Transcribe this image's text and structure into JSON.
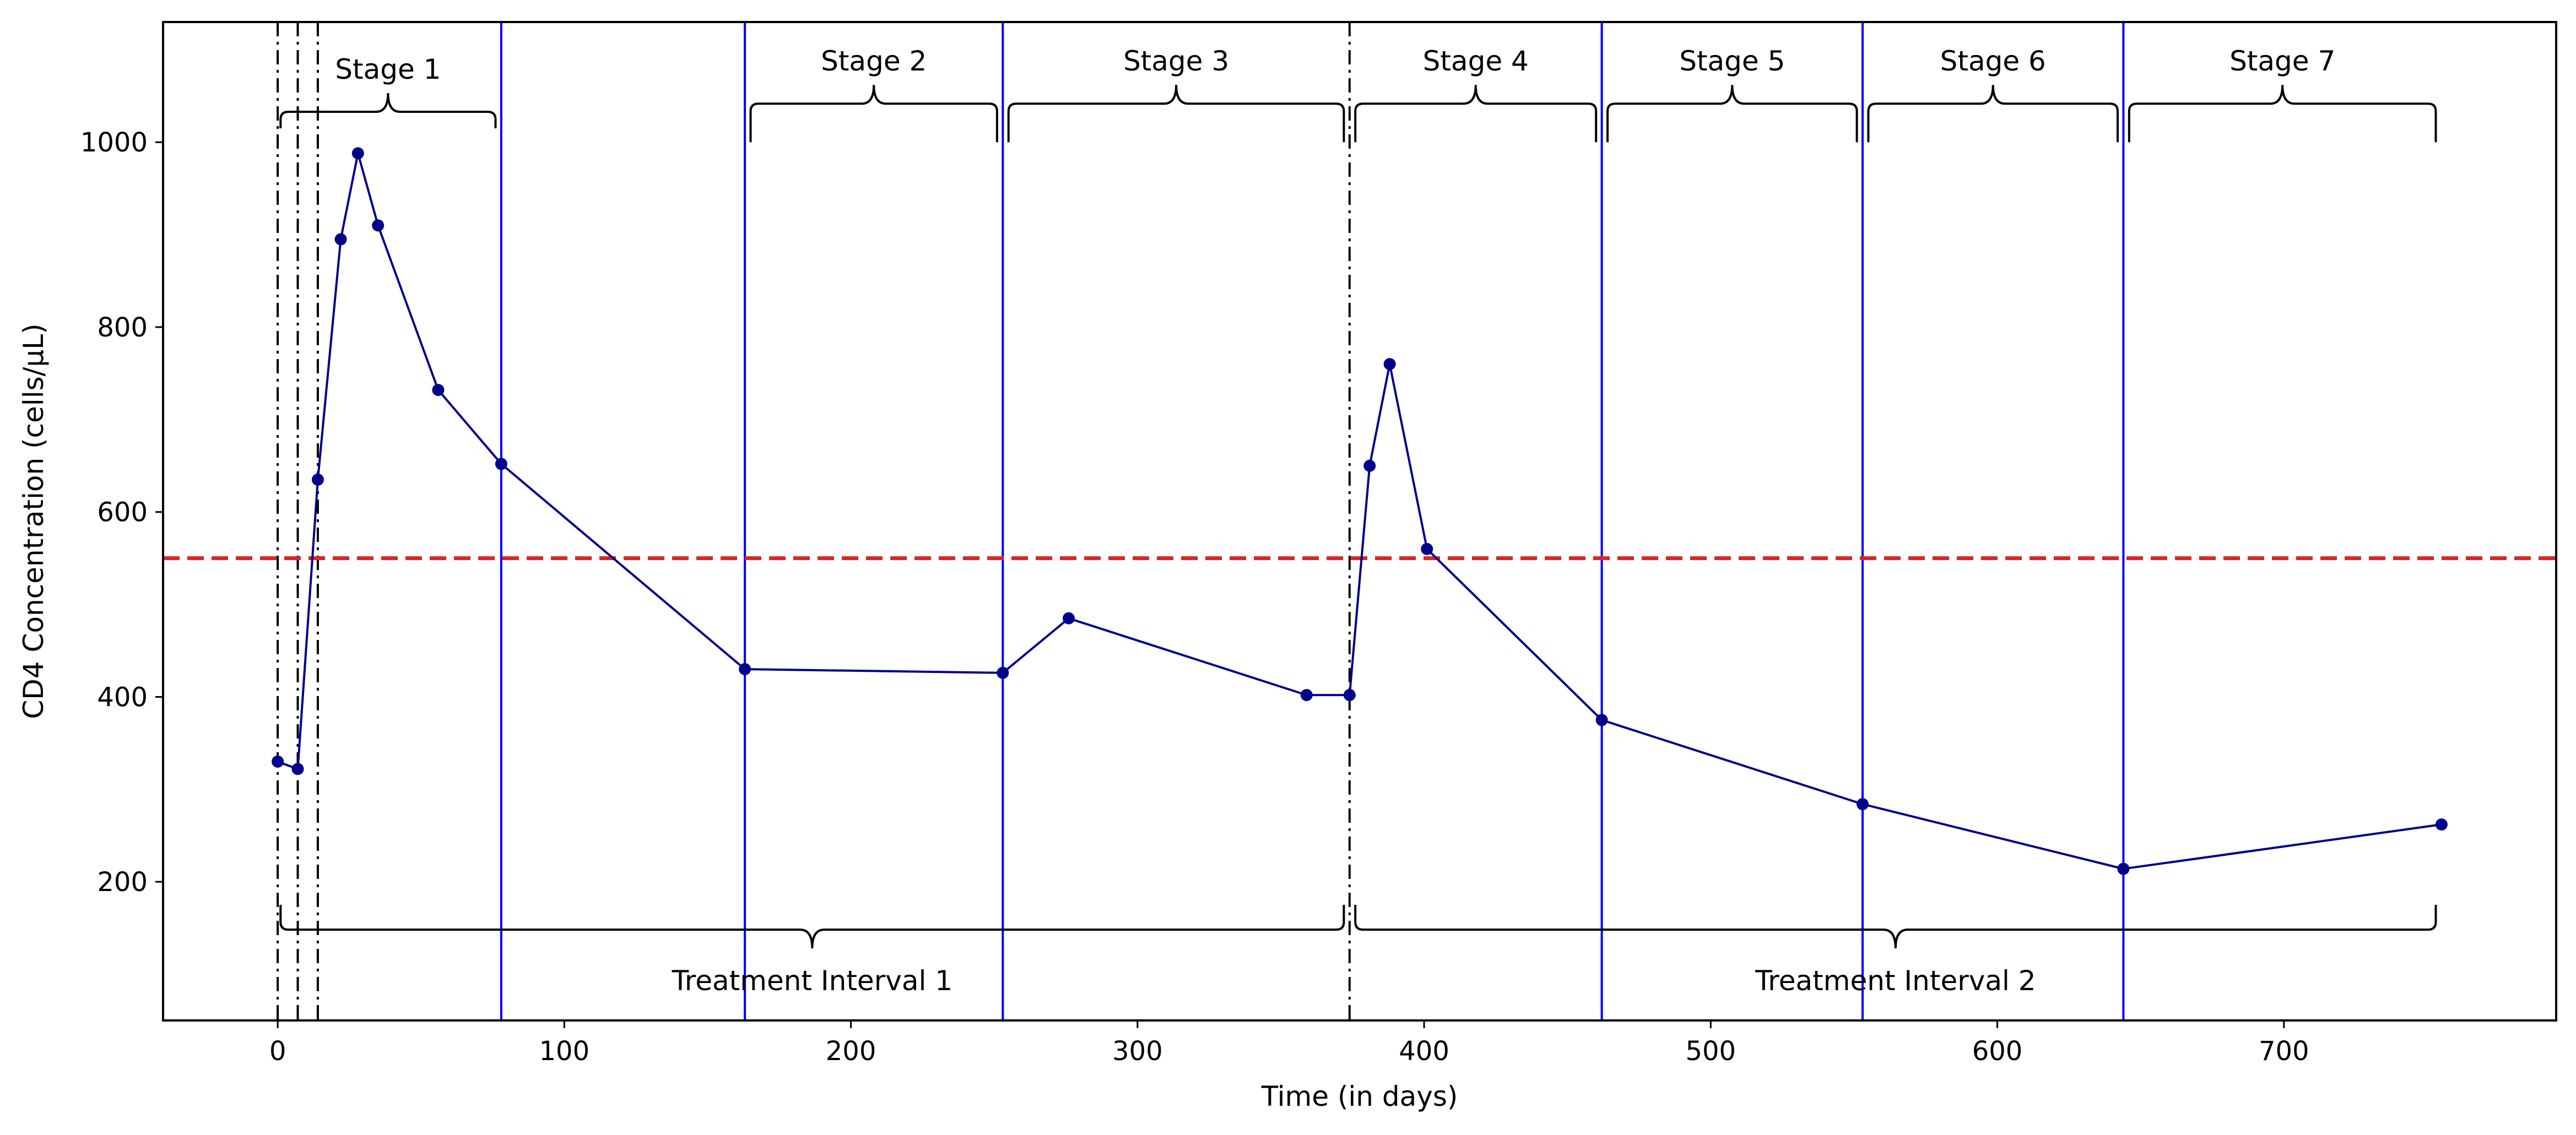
{
  "chart_data": {
    "type": "line",
    "title": "",
    "xlabel": "Time (in days)",
    "ylabel": "CD4 Concentration (cells/µL)",
    "xlim": [
      -40,
      795
    ],
    "ylim": [
      50,
      1130
    ],
    "xticks": [
      0,
      100,
      200,
      300,
      400,
      500,
      600,
      700
    ],
    "yticks": [
      200,
      400,
      600,
      800,
      1000
    ],
    "grid": false,
    "legend": "none",
    "series": [
      {
        "color": "#00008b",
        "points": [
          {
            "x": 0,
            "y": 330
          },
          {
            "x": 7,
            "y": 322
          },
          {
            "x": 14,
            "y": 635
          },
          {
            "x": 22,
            "y": 895
          },
          {
            "x": 28,
            "y": 988
          },
          {
            "x": 35,
            "y": 910
          },
          {
            "x": 56,
            "y": 732
          },
          {
            "x": 78,
            "y": 652
          },
          {
            "x": 163,
            "y": 430
          },
          {
            "x": 253,
            "y": 426
          },
          {
            "x": 276,
            "y": 485
          },
          {
            "x": 359,
            "y": 402
          },
          {
            "x": 374,
            "y": 402
          },
          {
            "x": 381,
            "y": 650
          },
          {
            "x": 388,
            "y": 760
          },
          {
            "x": 401,
            "y": 560
          },
          {
            "x": 462,
            "y": 375
          },
          {
            "x": 553,
            "y": 284
          },
          {
            "x": 644,
            "y": 214
          },
          {
            "x": 755,
            "y": 262
          }
        ]
      }
    ],
    "threshold": {
      "y": 550,
      "color": "#d62728"
    },
    "blue_lines": {
      "x": [
        78,
        163,
        253,
        462,
        553,
        644
      ],
      "color": "#0000ff"
    },
    "dashdot_lines": {
      "x": [
        0,
        7,
        14,
        374
      ],
      "color": "#000000"
    },
    "stages": [
      {
        "label": "Stage 1",
        "x0": 1,
        "x1": 76,
        "y": 1015
      },
      {
        "label": "Stage 2",
        "x0": 165,
        "x1": 251,
        "y": 1000
      },
      {
        "label": "Stage 3",
        "x0": 255,
        "x1": 372,
        "y": 1000
      },
      {
        "label": "Stage 4",
        "x0": 376,
        "x1": 460,
        "y": 1000
      },
      {
        "label": "Stage 5",
        "x0": 464,
        "x1": 551,
        "y": 1000
      },
      {
        "label": "Stage 6",
        "x0": 555,
        "x1": 642,
        "y": 1000
      },
      {
        "label": "Stage 7",
        "x0": 646,
        "x1": 753,
        "y": 1000
      }
    ],
    "intervals": [
      {
        "label": "Treatment Interval 1",
        "x0": 1,
        "x1": 372,
        "y": 175
      },
      {
        "label": "Treatment Interval 2",
        "x0": 376,
        "x1": 753,
        "y": 175
      }
    ]
  }
}
